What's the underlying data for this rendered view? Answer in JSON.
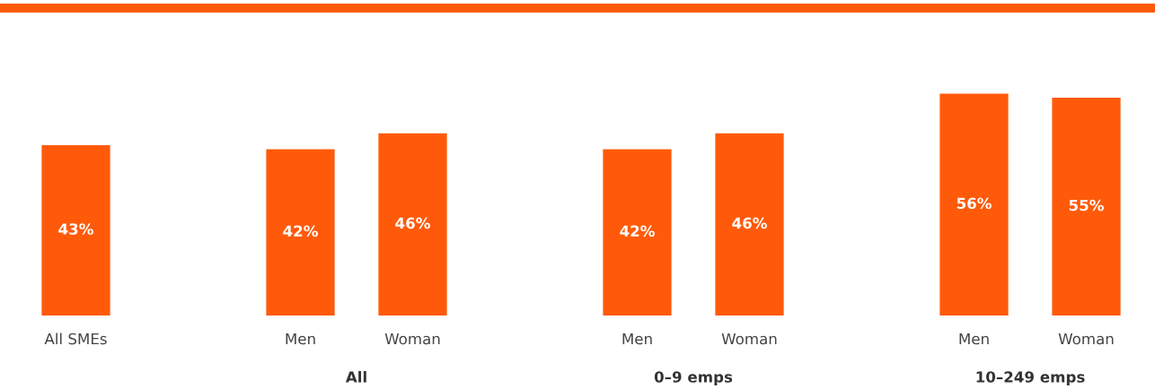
{
  "chart_data": {
    "type": "bar",
    "categories": [
      "All SMEs",
      null,
      "Men",
      "Woman",
      null,
      "Men",
      "Woman",
      null,
      "Men",
      "Woman"
    ],
    "values": [
      43,
      null,
      42,
      46,
      null,
      42,
      46,
      null,
      56,
      55
    ],
    "value_labels": [
      "43%",
      null,
      "42%",
      "46%",
      null,
      "42%",
      "46%",
      null,
      "56%",
      "55%"
    ],
    "annotations": [
      "All",
      "0–9 emps",
      "10–249 emps"
    ],
    "color": "#ff5a0a",
    "tick_labels": "x",
    "grid": false,
    "legend": false
  }
}
